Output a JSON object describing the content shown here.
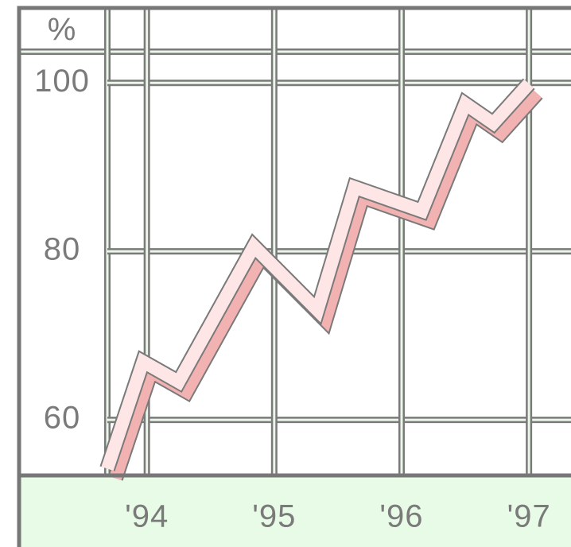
{
  "chart_data": {
    "type": "line",
    "y_label": "%",
    "x": [
      1993.69,
      1993.97,
      1994.25,
      1994.84,
      1995.34,
      1995.63,
      1996.16,
      1996.5,
      1996.72,
      1997.0
    ],
    "series": [
      {
        "color": "#ffe6e6",
        "values": [
          54.2,
          66.9,
          64.5,
          80.6,
          73.0,
          87.6,
          84.8,
          97.5,
          95.2,
          99.9
        ]
      }
    ],
    "xlim": [
      1993.69,
      1997.33
    ],
    "ylim": [
      53.4,
      103.7
    ],
    "xticks": [
      {
        "value": 1994,
        "label": "'94"
      },
      {
        "value": 1995,
        "label": "'95"
      },
      {
        "value": 1996,
        "label": "'96"
      },
      {
        "value": 1997,
        "label": "'97"
      }
    ],
    "yticks": [
      60,
      80,
      100
    ],
    "grid": true
  }
}
